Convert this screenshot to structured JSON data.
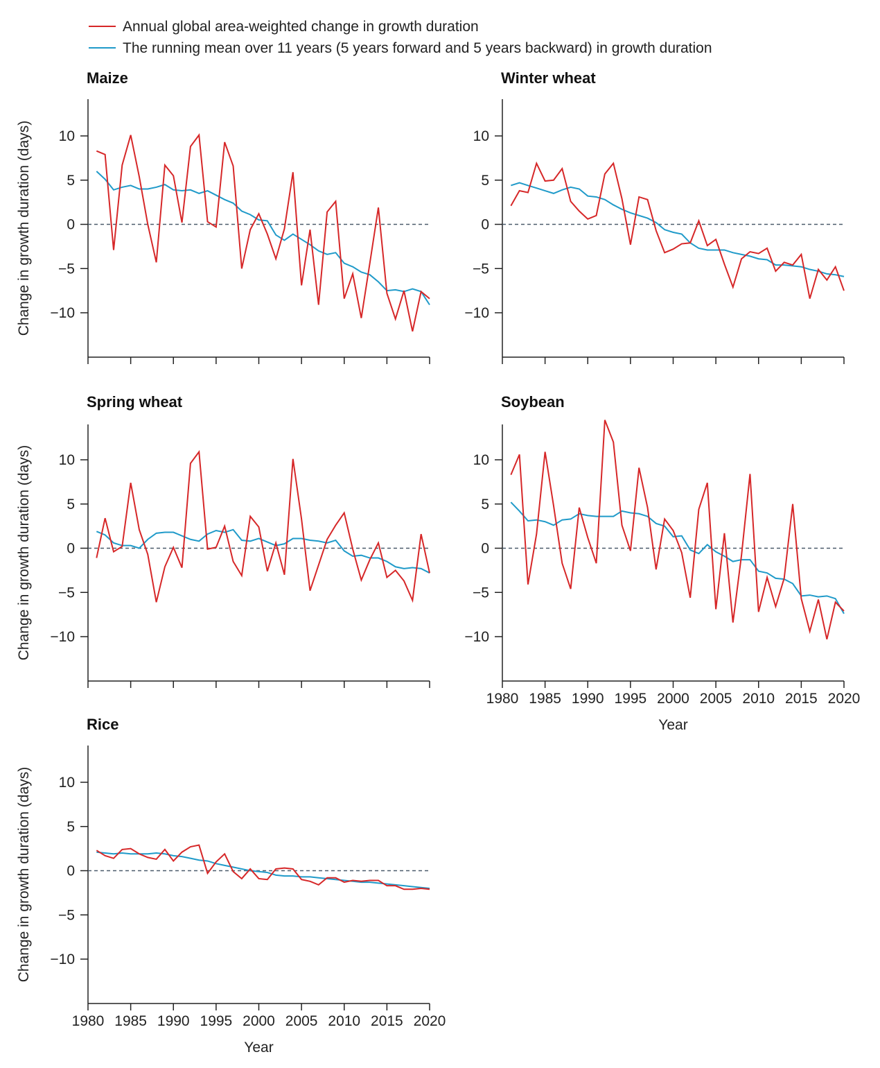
{
  "legend": [
    {
      "label": "Annual global area-weighted change in growth duration",
      "color": "#d62728"
    },
    {
      "label": "The running mean over 11 years (5 years forward and 5 years backward) in growth duration",
      "color": "#1f9ac9"
    }
  ],
  "colors": {
    "annual": "#d62728",
    "running_mean": "#1f9ac9",
    "zero_line": "#4a5a6a",
    "axis": "#222222"
  },
  "chart_data": [
    {
      "type": "line",
      "title": "Maize",
      "xlabel": "",
      "ylabel": "Change in growth duration (days)",
      "xlim": [
        1980,
        2020
      ],
      "ylim": [
        -14,
        14
      ],
      "yticks": [
        10,
        5,
        0,
        -5,
        -10
      ],
      "xticks": [
        1980,
        1985,
        1990,
        1995,
        2000,
        2005,
        2010,
        2015,
        2020
      ],
      "show_x_tick_labels": false,
      "x": [
        1981,
        1982,
        1983,
        1984,
        1985,
        1986,
        1987,
        1988,
        1989,
        1990,
        1991,
        1992,
        1993,
        1994,
        1995,
        1996,
        1997,
        1998,
        1999,
        2000,
        2001,
        2002,
        2003,
        2004,
        2005,
        2006,
        2007,
        2008,
        2009,
        2010,
        2011,
        2012,
        2013,
        2014,
        2015,
        2016,
        2017,
        2018,
        2019,
        2020
      ],
      "series": [
        {
          "name": "Annual",
          "values": [
            8.3,
            7.9,
            -2.9,
            6.7,
            10.1,
            5.4,
            0.0,
            -4.3,
            6.7,
            5.5,
            0.2,
            8.8,
            10.1,
            0.3,
            -0.3,
            9.3,
            6.6,
            -5.0,
            -0.6,
            1.2,
            -1.1,
            -3.9,
            -0.5,
            5.9,
            -6.9,
            -0.6,
            -9.1,
            1.4,
            2.6,
            -8.4,
            -5.6,
            -10.6,
            -4.4,
            1.9,
            -7.8,
            -10.7,
            -7.5,
            -12.1,
            -7.6,
            -8.4
          ]
        },
        {
          "name": "Running mean",
          "values": [
            6.0,
            5.1,
            3.9,
            4.2,
            4.4,
            4.0,
            4.0,
            4.2,
            4.5,
            3.9,
            3.8,
            3.9,
            3.5,
            3.8,
            3.3,
            2.8,
            2.4,
            1.5,
            1.1,
            0.5,
            0.4,
            -1.2,
            -1.8,
            -1.1,
            -1.7,
            -2.3,
            -3.0,
            -3.4,
            -3.2,
            -4.4,
            -4.8,
            -5.4,
            -5.7,
            -6.5,
            -7.5,
            -7.4,
            -7.6,
            -7.3,
            -7.6,
            -9.1
          ]
        }
      ]
    },
    {
      "type": "line",
      "title": "Winter wheat",
      "xlabel": "",
      "ylabel": "",
      "xlim": [
        1980,
        2020
      ],
      "ylim": [
        -14,
        14
      ],
      "yticks": [
        10,
        5,
        0,
        -5,
        -10
      ],
      "xticks": [
        1980,
        1985,
        1990,
        1995,
        2000,
        2005,
        2010,
        2015,
        2020
      ],
      "show_x_tick_labels": false,
      "x": [
        1981,
        1982,
        1983,
        1984,
        1985,
        1986,
        1987,
        1988,
        1989,
        1990,
        1991,
        1992,
        1993,
        1994,
        1995,
        1996,
        1997,
        1998,
        1999,
        2000,
        2001,
        2002,
        2003,
        2004,
        2005,
        2006,
        2007,
        2008,
        2009,
        2010,
        2011,
        2012,
        2013,
        2014,
        2015,
        2016,
        2017,
        2018,
        2019,
        2020
      ],
      "series": [
        {
          "name": "Annual",
          "values": [
            2.1,
            3.8,
            3.6,
            6.9,
            4.9,
            5.0,
            6.3,
            2.6,
            1.5,
            0.6,
            1.0,
            5.7,
            6.9,
            2.9,
            -2.3,
            3.1,
            2.8,
            -0.7,
            -3.2,
            -2.8,
            -2.2,
            -2.1,
            0.4,
            -2.4,
            -1.7,
            -4.5,
            -7.1,
            -3.9,
            -3.1,
            -3.3,
            -2.7,
            -5.3,
            -4.3,
            -4.6,
            -3.4,
            -8.4,
            -5.1,
            -6.3,
            -4.8,
            -7.5
          ]
        },
        {
          "name": "Running mean",
          "values": [
            4.4,
            4.7,
            4.4,
            4.1,
            3.8,
            3.5,
            3.9,
            4.2,
            4.0,
            3.2,
            3.1,
            2.8,
            2.2,
            1.7,
            1.3,
            1.0,
            0.7,
            0.2,
            -0.6,
            -0.9,
            -1.1,
            -2.1,
            -2.7,
            -2.9,
            -2.9,
            -2.9,
            -3.2,
            -3.4,
            -3.6,
            -3.9,
            -4.0,
            -4.6,
            -4.6,
            -4.7,
            -4.8,
            -5.1,
            -5.3,
            -5.6,
            -5.7,
            -5.9
          ]
        }
      ]
    },
    {
      "type": "line",
      "title": "Spring wheat",
      "xlabel": "",
      "ylabel": "Change in growth duration (days)",
      "xlim": [
        1980,
        2020
      ],
      "ylim": [
        -14,
        14
      ],
      "yticks": [
        10,
        5,
        0,
        -5,
        -10
      ],
      "xticks": [
        1980,
        1985,
        1990,
        1995,
        2000,
        2005,
        2010,
        2015,
        2020
      ],
      "show_x_tick_labels": false,
      "x": [
        1981,
        1982,
        1983,
        1984,
        1985,
        1986,
        1987,
        1988,
        1989,
        1990,
        1991,
        1992,
        1993,
        1994,
        1995,
        1996,
        1997,
        1998,
        1999,
        2000,
        2001,
        2002,
        2003,
        2004,
        2005,
        2006,
        2007,
        2008,
        2009,
        2010,
        2011,
        2012,
        2013,
        2014,
        2015,
        2016,
        2017,
        2018,
        2019,
        2020
      ],
      "series": [
        {
          "name": "Annual",
          "values": [
            -1.1,
            3.4,
            -0.4,
            0.2,
            7.4,
            2.1,
            -0.7,
            -6.1,
            -2.1,
            0.1,
            -2.2,
            9.6,
            10.9,
            -0.1,
            0.1,
            2.5,
            -1.5,
            -3.1,
            3.6,
            2.4,
            -2.6,
            0.6,
            -3.0,
            10.1,
            3.3,
            -4.8,
            -1.9,
            1.0,
            2.6,
            4.0,
            -0.1,
            -3.6,
            -1.3,
            0.6,
            -3.3,
            -2.5,
            -3.7,
            -5.9,
            1.6,
            -2.8
          ]
        },
        {
          "name": "Running mean",
          "values": [
            1.9,
            1.5,
            0.6,
            0.3,
            0.3,
            0.0,
            1.0,
            1.7,
            1.8,
            1.8,
            1.4,
            1.0,
            0.8,
            1.6,
            2.0,
            1.8,
            2.1,
            0.9,
            0.8,
            1.1,
            0.7,
            0.3,
            0.5,
            1.1,
            1.1,
            0.9,
            0.8,
            0.6,
            0.9,
            -0.3,
            -0.9,
            -0.8,
            -1.1,
            -1.1,
            -1.5,
            -2.1,
            -2.3,
            -2.2,
            -2.3,
            -2.8
          ]
        }
      ]
    },
    {
      "type": "line",
      "title": "Soybean",
      "xlabel": "Year",
      "ylabel": "",
      "xlim": [
        1980,
        2020
      ],
      "ylim": [
        -14,
        14
      ],
      "yticks": [
        10,
        5,
        0,
        -5,
        -10
      ],
      "xticks": [
        1980,
        1985,
        1990,
        1995,
        2000,
        2005,
        2010,
        2015,
        2020
      ],
      "show_x_tick_labels": true,
      "x": [
        1981,
        1982,
        1983,
        1984,
        1985,
        1986,
        1987,
        1988,
        1989,
        1990,
        1991,
        1992,
        1993,
        1994,
        1995,
        1996,
        1997,
        1998,
        1999,
        2000,
        2001,
        2002,
        2003,
        2004,
        2005,
        2006,
        2007,
        2008,
        2009,
        2010,
        2011,
        2012,
        2013,
        2014,
        2015,
        2016,
        2017,
        2018,
        2019,
        2020
      ],
      "series": [
        {
          "name": "Annual",
          "values": [
            8.3,
            10.6,
            -4.1,
            1.6,
            10.9,
            4.8,
            -1.7,
            -4.6,
            4.6,
            1.2,
            -1.7,
            14.5,
            12.0,
            2.6,
            -0.3,
            9.1,
            4.6,
            -2.4,
            3.3,
            2.0,
            -0.5,
            -5.6,
            4.4,
            7.4,
            -6.9,
            1.7,
            -8.4,
            -0.8,
            8.4,
            -7.2,
            -3.3,
            -6.6,
            -3.4,
            5.0,
            -5.7,
            -9.4,
            -5.8,
            -10.3,
            -6.1,
            -7.1
          ]
        },
        {
          "name": "Running mean",
          "values": [
            5.2,
            4.2,
            3.1,
            3.2,
            3.0,
            2.6,
            3.2,
            3.3,
            3.9,
            3.7,
            3.6,
            3.6,
            3.6,
            4.2,
            4.0,
            3.9,
            3.6,
            2.8,
            2.5,
            1.3,
            1.4,
            -0.2,
            -0.6,
            0.4,
            -0.4,
            -0.9,
            -1.5,
            -1.3,
            -1.3,
            -2.6,
            -2.8,
            -3.4,
            -3.5,
            -4.0,
            -5.4,
            -5.3,
            -5.5,
            -5.4,
            -5.7,
            -7.4
          ]
        }
      ]
    },
    {
      "type": "line",
      "title": "Rice",
      "xlabel": "Year",
      "ylabel": "Change in growth duration (days)",
      "xlim": [
        1980,
        2020
      ],
      "ylim": [
        -14,
        14
      ],
      "yticks": [
        10,
        5,
        0,
        -5,
        -10
      ],
      "xticks": [
        1980,
        1985,
        1990,
        1995,
        2000,
        2005,
        2010,
        2015,
        2020
      ],
      "show_x_tick_labels": true,
      "x": [
        1981,
        1982,
        1983,
        1984,
        1985,
        1986,
        1987,
        1988,
        1989,
        1990,
        1991,
        1992,
        1993,
        1994,
        1995,
        1996,
        1997,
        1998,
        1999,
        2000,
        2001,
        2002,
        2003,
        2004,
        2005,
        2006,
        2007,
        2008,
        2009,
        2010,
        2011,
        2012,
        2013,
        2014,
        2015,
        2016,
        2017,
        2018,
        2019,
        2020
      ],
      "series": [
        {
          "name": "Annual",
          "values": [
            2.3,
            1.7,
            1.4,
            2.4,
            2.5,
            1.9,
            1.5,
            1.3,
            2.4,
            1.1,
            2.1,
            2.7,
            2.9,
            -0.3,
            1.0,
            1.9,
            -0.1,
            -0.9,
            0.2,
            -0.9,
            -1.0,
            0.2,
            0.3,
            0.2,
            -1.0,
            -1.2,
            -1.6,
            -0.8,
            -0.8,
            -1.3,
            -1.1,
            -1.2,
            -1.1,
            -1.1,
            -1.7,
            -1.7,
            -2.1,
            -2.1,
            -2.0,
            -2.1
          ]
        },
        {
          "name": "Running mean",
          "values": [
            2.1,
            2.0,
            1.9,
            2.0,
            1.9,
            1.9,
            1.9,
            2.0,
            1.9,
            1.7,
            1.6,
            1.4,
            1.2,
            1.1,
            0.8,
            0.6,
            0.4,
            0.2,
            0.0,
            -0.1,
            -0.2,
            -0.5,
            -0.6,
            -0.6,
            -0.7,
            -0.7,
            -0.8,
            -0.9,
            -1.0,
            -1.1,
            -1.2,
            -1.3,
            -1.3,
            -1.4,
            -1.5,
            -1.6,
            -1.7,
            -1.8,
            -1.9,
            -2.0
          ]
        }
      ]
    }
  ]
}
